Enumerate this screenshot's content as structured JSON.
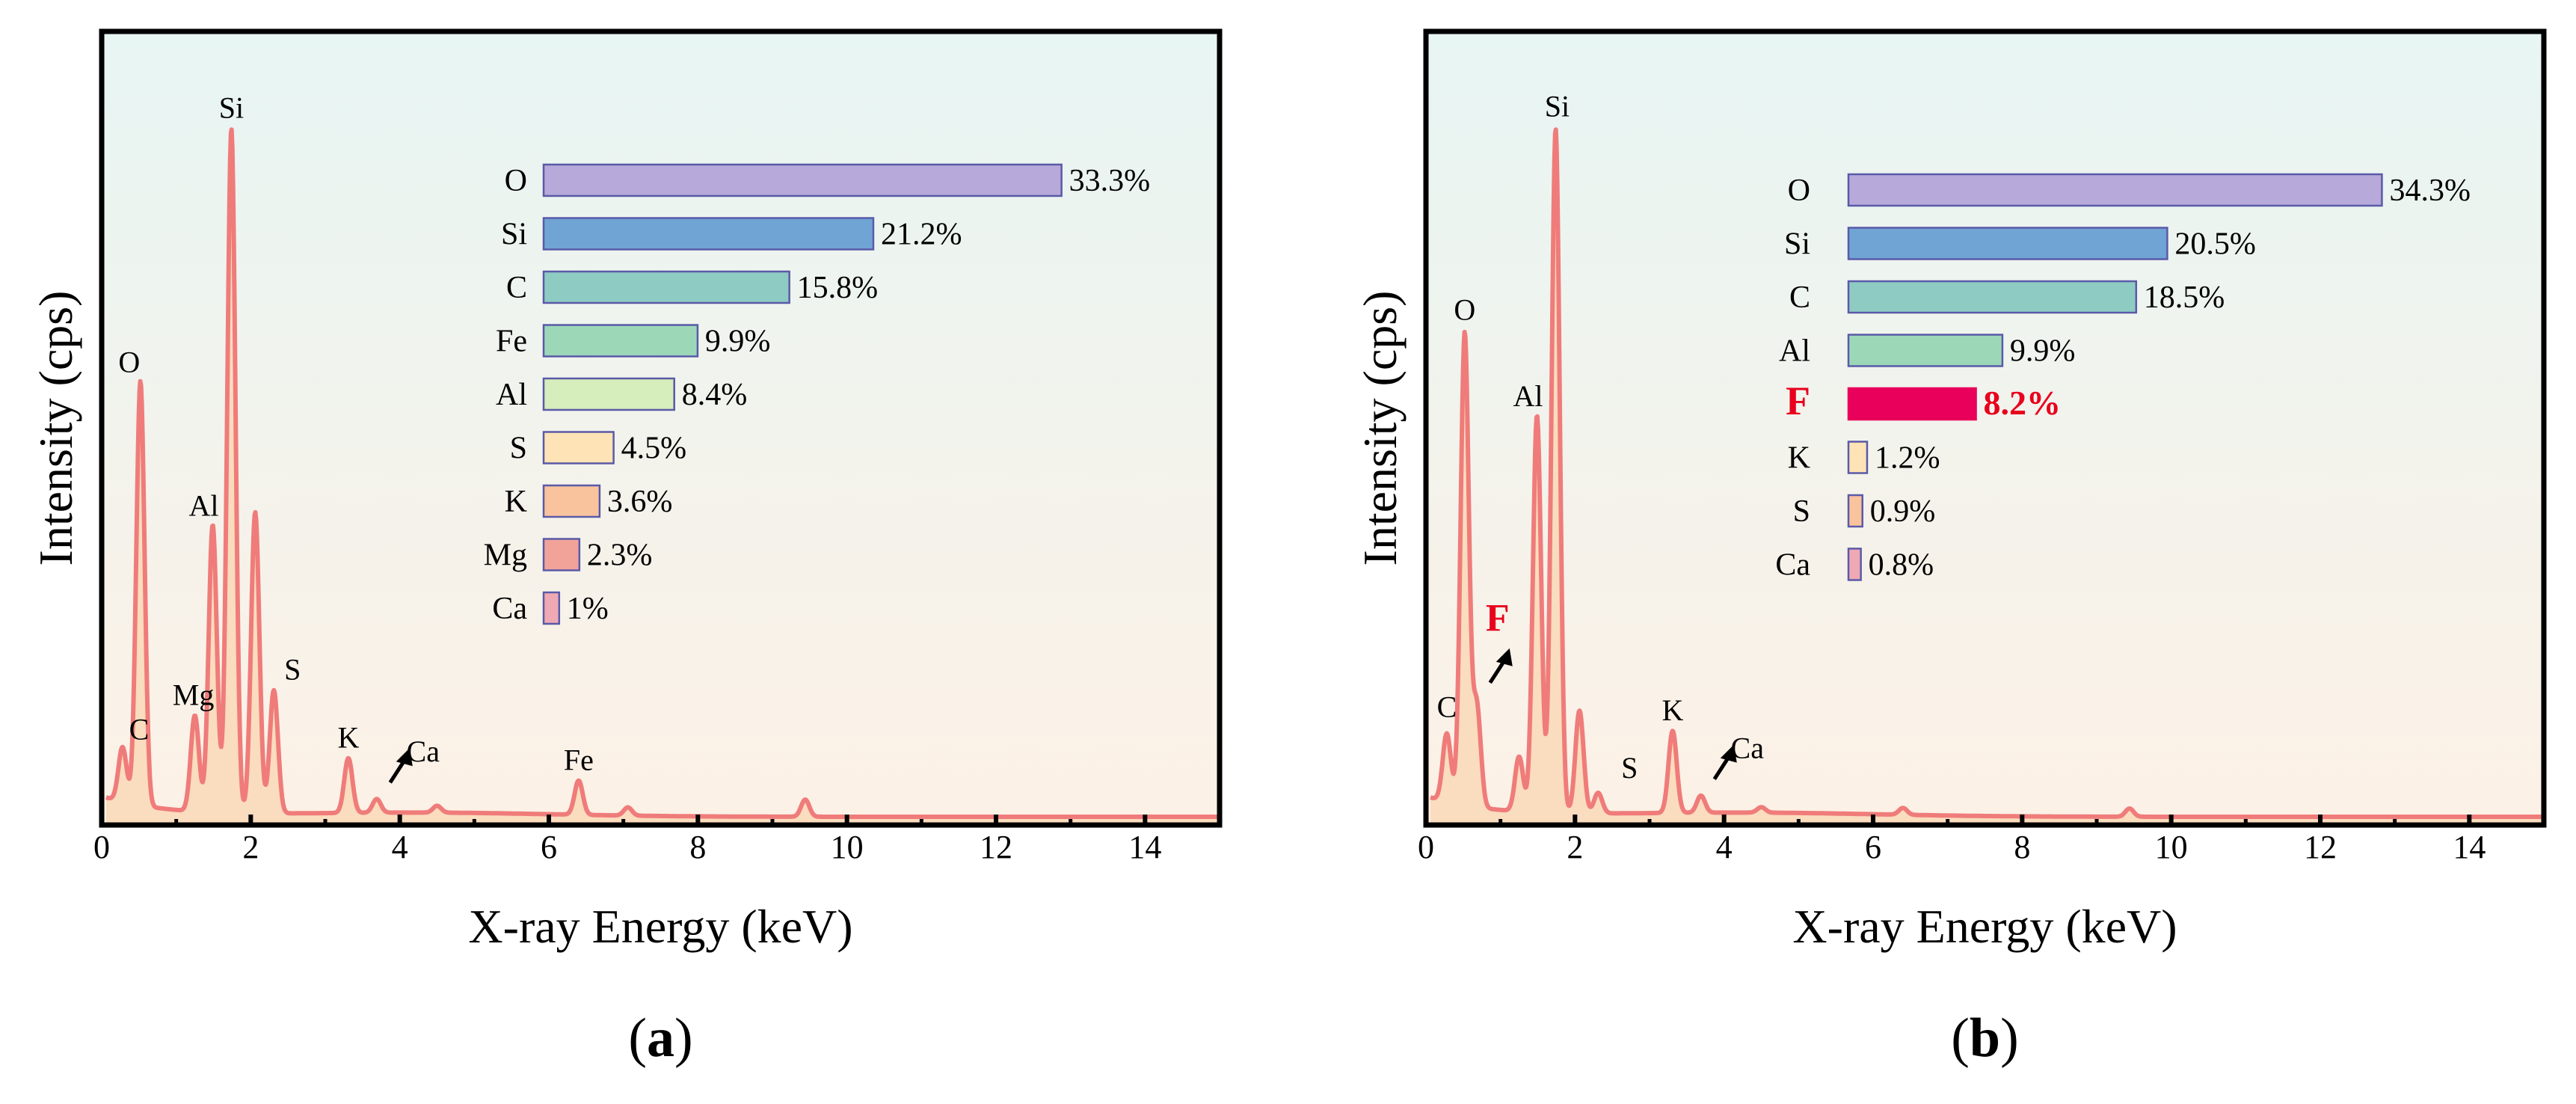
{
  "colors": {
    "spectrum_line": "#ef7c7a",
    "spectrum_fill": "#f9d9b9",
    "bg_top": "#e7f5f3",
    "bg_bottom": "#fdf1e6",
    "highlight": "#e8005a",
    "highlight_text": "#e8001c"
  },
  "chart_data": [
    {
      "id": "a",
      "type": "line",
      "panel_label": "a",
      "xlabel": "X-ray Energy (keV)",
      "ylabel": "Intensity (cps)",
      "xlim": [
        0,
        15
      ],
      "ylim": [
        0,
        1.0
      ],
      "x_ticks": [
        0,
        2,
        4,
        6,
        8,
        10,
        12,
        14
      ],
      "peaks": [
        {
          "label": "C",
          "energy": 0.28,
          "height": 0.08
        },
        {
          "label": "O",
          "energy": 0.52,
          "height": 0.62
        },
        {
          "label": "Mg",
          "energy": 1.25,
          "height": 0.14
        },
        {
          "label": "Al",
          "energy": 1.49,
          "height": 0.42
        },
        {
          "label": "Si",
          "energy": 1.74,
          "height": 1.0
        },
        {
          "label": "",
          "energy": 2.06,
          "height": 0.44
        },
        {
          "label": "S",
          "energy": 2.31,
          "height": 0.18
        },
        {
          "label": "K",
          "energy": 3.31,
          "height": 0.08
        },
        {
          "label": "Ca",
          "energy": 3.69,
          "height": 0.02
        },
        {
          "label": "",
          "energy": 4.5,
          "height": 0.01
        },
        {
          "label": "Fe",
          "energy": 6.4,
          "height": 0.05
        },
        {
          "label": "",
          "energy": 7.06,
          "height": 0.012
        },
        {
          "label": "",
          "energy": 9.44,
          "height": 0.025
        }
      ],
      "composition_unit": "%",
      "composition": [
        {
          "element": "O",
          "value": 33.3,
          "label": "33.3%",
          "color": "#b7a9d9",
          "highlight": false
        },
        {
          "element": "Si",
          "value": 21.2,
          "label": "21.2%",
          "color": "#6fa4d4",
          "highlight": false
        },
        {
          "element": "C",
          "value": 15.8,
          "label": "15.8%",
          "color": "#8ecbc2",
          "highlight": false
        },
        {
          "element": "Fe",
          "value": 9.9,
          "label": "9.9%",
          "color": "#9cd8b8",
          "highlight": false
        },
        {
          "element": "Al",
          "value": 8.4,
          "label": "8.4%",
          "color": "#d6edbc",
          "highlight": false
        },
        {
          "element": "S",
          "value": 4.5,
          "label": "4.5%",
          "color": "#fde3b5",
          "highlight": false
        },
        {
          "element": "K",
          "value": 3.6,
          "label": "3.6%",
          "color": "#f9c39e",
          "highlight": false
        },
        {
          "element": "Mg",
          "value": 2.3,
          "label": "2.3%",
          "color": "#f1a39a",
          "highlight": false
        },
        {
          "element": "Ca",
          "value": 1.0,
          "label": "1%",
          "color": "#efa9b4",
          "highlight": false
        }
      ]
    },
    {
      "id": "b",
      "type": "line",
      "panel_label": "b",
      "xlabel": "X-ray Energy (keV)",
      "ylabel": "Intensity (cps)",
      "xlim": [
        0,
        15
      ],
      "ylim": [
        0,
        1.0
      ],
      "x_ticks": [
        0,
        2,
        4,
        6,
        8,
        10,
        12,
        14
      ],
      "peaks": [
        {
          "label": "C",
          "energy": 0.28,
          "height": 0.1
        },
        {
          "label": "O",
          "energy": 0.52,
          "height": 0.69
        },
        {
          "label": "F",
          "energy": 0.68,
          "height": 0.15
        },
        {
          "label": "",
          "energy": 1.25,
          "height": 0.08
        },
        {
          "label": "Al",
          "energy": 1.49,
          "height": 0.58
        },
        {
          "label": "Si",
          "energy": 1.74,
          "height": 1.0
        },
        {
          "label": "",
          "energy": 2.06,
          "height": 0.15
        },
        {
          "label": "S",
          "energy": 2.31,
          "height": 0.03
        },
        {
          "label": "K",
          "energy": 3.31,
          "height": 0.12
        },
        {
          "label": "Ca",
          "energy": 3.69,
          "height": 0.025
        },
        {
          "label": "",
          "energy": 4.5,
          "height": 0.008
        },
        {
          "label": "",
          "energy": 6.4,
          "height": 0.01
        },
        {
          "label": "",
          "energy": 9.44,
          "height": 0.012
        }
      ],
      "composition_unit": "%",
      "composition": [
        {
          "element": "O",
          "value": 34.3,
          "label": "34.3%",
          "color": "#b7a9d9",
          "highlight": false
        },
        {
          "element": "Si",
          "value": 20.5,
          "label": "20.5%",
          "color": "#6fa4d4",
          "highlight": false
        },
        {
          "element": "C",
          "value": 18.5,
          "label": "18.5%",
          "color": "#8ecbc2",
          "highlight": false
        },
        {
          "element": "Al",
          "value": 9.9,
          "label": "9.9%",
          "color": "#9cd8b8",
          "highlight": false
        },
        {
          "element": "F",
          "value": 8.2,
          "label": "8.2%",
          "color": "#e8005a",
          "highlight": true
        },
        {
          "element": "K",
          "value": 1.2,
          "label": "1.2%",
          "color": "#fde3b5",
          "highlight": false
        },
        {
          "element": "S",
          "value": 0.9,
          "label": "0.9%",
          "color": "#f9c39e",
          "highlight": false
        },
        {
          "element": "Ca",
          "value": 0.8,
          "label": "0.8%",
          "color": "#efa9b4",
          "highlight": false
        }
      ]
    }
  ]
}
